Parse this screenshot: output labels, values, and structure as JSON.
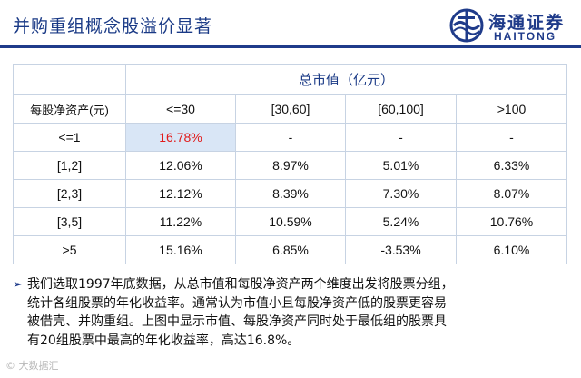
{
  "title": "并购重组概念股溢价显著",
  "logo": {
    "cn": "海通证券",
    "en": "HAITONG",
    "icon": "haitong-logo-icon"
  },
  "table": {
    "group_header": "总市值（亿元）",
    "row_header": "每股净资产(元)",
    "columns": [
      "<=30",
      "[30,60]",
      "[60,100]",
      ">100"
    ],
    "rows": [
      {
        "label": "<=1",
        "cells": [
          "16.78%",
          "-",
          "-",
          "-"
        ]
      },
      {
        "label": "[1,2]",
        "cells": [
          "12.06%",
          "8.97%",
          "5.01%",
          "6.33%"
        ]
      },
      {
        "label": "[2,3]",
        "cells": [
          "12.12%",
          "8.39%",
          "7.30%",
          "8.07%"
        ]
      },
      {
        "label": "[3,5]",
        "cells": [
          "11.22%",
          "10.59%",
          "5.24%",
          "10.76%"
        ]
      },
      {
        "label": ">5",
        "cells": [
          "15.16%",
          "6.85%",
          "-3.53%",
          "6.10%"
        ]
      }
    ],
    "highlight_color": "#d9e6f6",
    "highlight_text_color": "#e11a1a"
  },
  "note": {
    "bullet": "➢",
    "lines": [
      "我们选取1997年底数据，从总市值和每股净资产两个维度出发将股票分组，",
      "统计各组股票的年化收益率。通常认为市值小且每股净资产低的股票更容易",
      "被借壳、并购重组。上图中显示市值、每股净资产同时处于最低组的股票具",
      "有20组股票中最高的年化收益率，高达16.8%。"
    ]
  },
  "watermark": "© 大数据汇",
  "colors": {
    "brand": "#1f3b8a",
    "grid": "#c7d3e3"
  }
}
